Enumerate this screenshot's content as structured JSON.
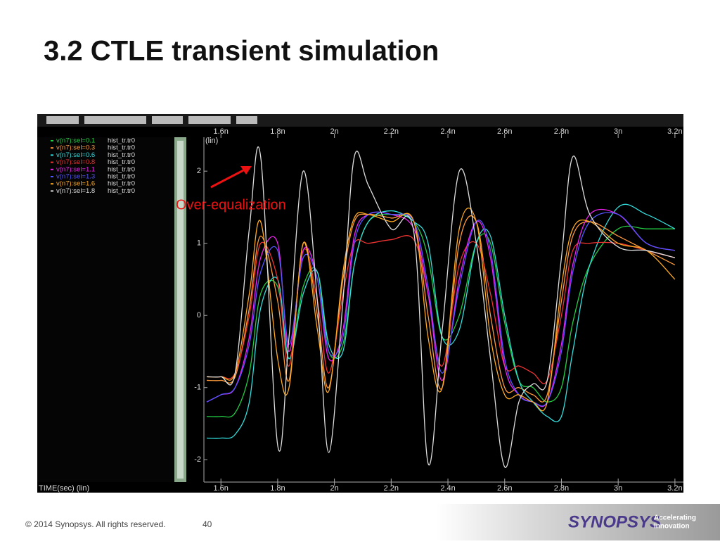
{
  "slide_title": "3.2 CTLE transient simulation",
  "footer": {
    "copyright": "© 2014 Synopsys. All rights reserved.",
    "page": "40",
    "logo": "SYNOPSYS",
    "tagline_1": "Accelerating",
    "tagline_2": "Innovation"
  },
  "chart_data": {
    "type": "line",
    "y_axis_label": "(lin)",
    "x_axis_label": "TIME(sec) (lin)",
    "annotation": "Over-equalization",
    "source": "hist_tr.tr0",
    "xlim": [
      1.54,
      3.23
    ],
    "ylim": [
      -2.31,
      2.47
    ],
    "xticks": [
      {
        "value": 1.6,
        "label": "1.6n"
      },
      {
        "value": 1.8,
        "label": "1.8n"
      },
      {
        "value": 2.0,
        "label": "2n"
      },
      {
        "value": 2.2,
        "label": "2.2n"
      },
      {
        "value": 2.4,
        "label": "2.4n"
      },
      {
        "value": 2.6,
        "label": "2.6n"
      },
      {
        "value": 2.8,
        "label": "2.8n"
      },
      {
        "value": 3.0,
        "label": "3n"
      },
      {
        "value": 3.2,
        "label": "3.2n"
      }
    ],
    "yticks": [
      2,
      1,
      0,
      -1,
      -2
    ],
    "x": [
      1.55,
      1.6,
      1.65,
      1.7,
      1.74,
      1.8,
      1.84,
      1.89,
      1.94,
      1.98,
      2.03,
      2.07,
      2.12,
      2.2,
      2.28,
      2.33,
      2.38,
      2.44,
      2.5,
      2.55,
      2.6,
      2.65,
      2.7,
      2.75,
      2.8,
      2.84,
      2.9,
      3.0,
      3.1,
      3.2
    ],
    "series": [
      {
        "name": "v(n7):sel=0.1",
        "color": "#22cc44",
        "values": [
          -1.4,
          -1.4,
          -1.35,
          -0.8,
          0.3,
          0.4,
          -0.6,
          0.4,
          0.6,
          -0.5,
          -0.4,
          0.7,
          1.3,
          1.4,
          1.3,
          0.8,
          -0.3,
          0.0,
          1.0,
          1.0,
          -0.1,
          -0.9,
          -1.0,
          -1.2,
          -1.0,
          -0.1,
          0.7,
          1.2,
          1.2,
          1.2
        ]
      },
      {
        "name": "v(n7):sel=0.3",
        "color": "#ff9a3c",
        "values": [
          -0.9,
          -0.9,
          -0.85,
          0.1,
          1.1,
          0.2,
          -0.9,
          1.0,
          0.0,
          -1.0,
          0.5,
          1.3,
          1.4,
          1.35,
          1.3,
          0.0,
          -1.0,
          1.0,
          1.3,
          0.0,
          -1.0,
          -1.0,
          -1.1,
          -1.1,
          0.2,
          1.1,
          1.3,
          1.1,
          0.9,
          0.7
        ]
      },
      {
        "name": "v(n7):sel=0.6",
        "color": "#33dddd",
        "values": [
          -1.7,
          -1.7,
          -1.65,
          -1.2,
          0.1,
          0.5,
          -0.6,
          0.3,
          0.6,
          -0.4,
          -0.5,
          0.7,
          1.3,
          1.45,
          1.3,
          1.0,
          -0.3,
          -0.2,
          1.0,
          1.1,
          0.0,
          -0.9,
          -1.2,
          -1.4,
          -1.4,
          -0.5,
          0.7,
          1.5,
          1.4,
          1.2
        ]
      },
      {
        "name": "v(n7):sel=0.8",
        "color": "#ee3333",
        "values": [
          -0.85,
          -0.85,
          -0.8,
          0.0,
          1.0,
          0.5,
          -0.7,
          0.9,
          0.2,
          -0.8,
          0.3,
          1.0,
          1.0,
          1.05,
          1.05,
          0.3,
          -0.7,
          0.7,
          1.0,
          0.3,
          -0.7,
          -0.7,
          -0.8,
          -0.9,
          0.0,
          0.9,
          1.0,
          1.0,
          0.9,
          0.8
        ]
      },
      {
        "name": "v(n7):sel=1.1",
        "color": "#ee22ee",
        "values": [
          -1.2,
          -1.1,
          -1.0,
          -0.3,
          0.8,
          1.0,
          -0.5,
          0.9,
          0.5,
          -0.6,
          -0.2,
          1.1,
          1.4,
          1.4,
          1.2,
          0.3,
          -0.9,
          0.5,
          1.3,
          0.8,
          -0.7,
          -1.1,
          -1.2,
          -1.2,
          -0.4,
          0.7,
          1.4,
          1.4,
          1.0,
          0.9
        ]
      },
      {
        "name": "v(n7):sel=1.3",
        "color": "#5555ff",
        "values": [
          -1.2,
          -1.1,
          -1.0,
          -0.4,
          0.6,
          0.9,
          -0.4,
          0.8,
          0.5,
          -0.5,
          -0.3,
          1.0,
          1.4,
          1.4,
          1.3,
          0.4,
          -0.8,
          0.4,
          1.3,
          0.9,
          -0.6,
          -1.1,
          -1.2,
          -1.2,
          -0.5,
          0.6,
          1.3,
          1.4,
          1.0,
          0.9
        ]
      },
      {
        "name": "v(n7):sel=1.6",
        "color": "#ffaa22",
        "values": [
          -0.85,
          -0.85,
          -0.8,
          0.3,
          1.3,
          -0.6,
          -1.0,
          1.0,
          -0.2,
          -1.05,
          0.6,
          1.35,
          1.4,
          1.3,
          1.3,
          -0.3,
          -1.0,
          1.2,
          1.3,
          -0.3,
          -1.1,
          -1.1,
          -1.2,
          -1.2,
          0.4,
          1.2,
          1.3,
          1.0,
          0.9,
          0.5
        ]
      },
      {
        "name": "v(n7):sel=1.8",
        "color": "#dddddd",
        "values": [
          -0.85,
          -0.85,
          -0.8,
          1.2,
          2.2,
          -1.8,
          -0.3,
          2.0,
          0.2,
          -1.9,
          0.2,
          2.2,
          1.8,
          1.2,
          1.15,
          -2.05,
          -0.2,
          2.0,
          1.0,
          -0.6,
          -2.1,
          -1.2,
          -0.95,
          -0.9,
          0.8,
          2.2,
          1.4,
          0.95,
          0.9,
          0.8
        ]
      }
    ]
  }
}
